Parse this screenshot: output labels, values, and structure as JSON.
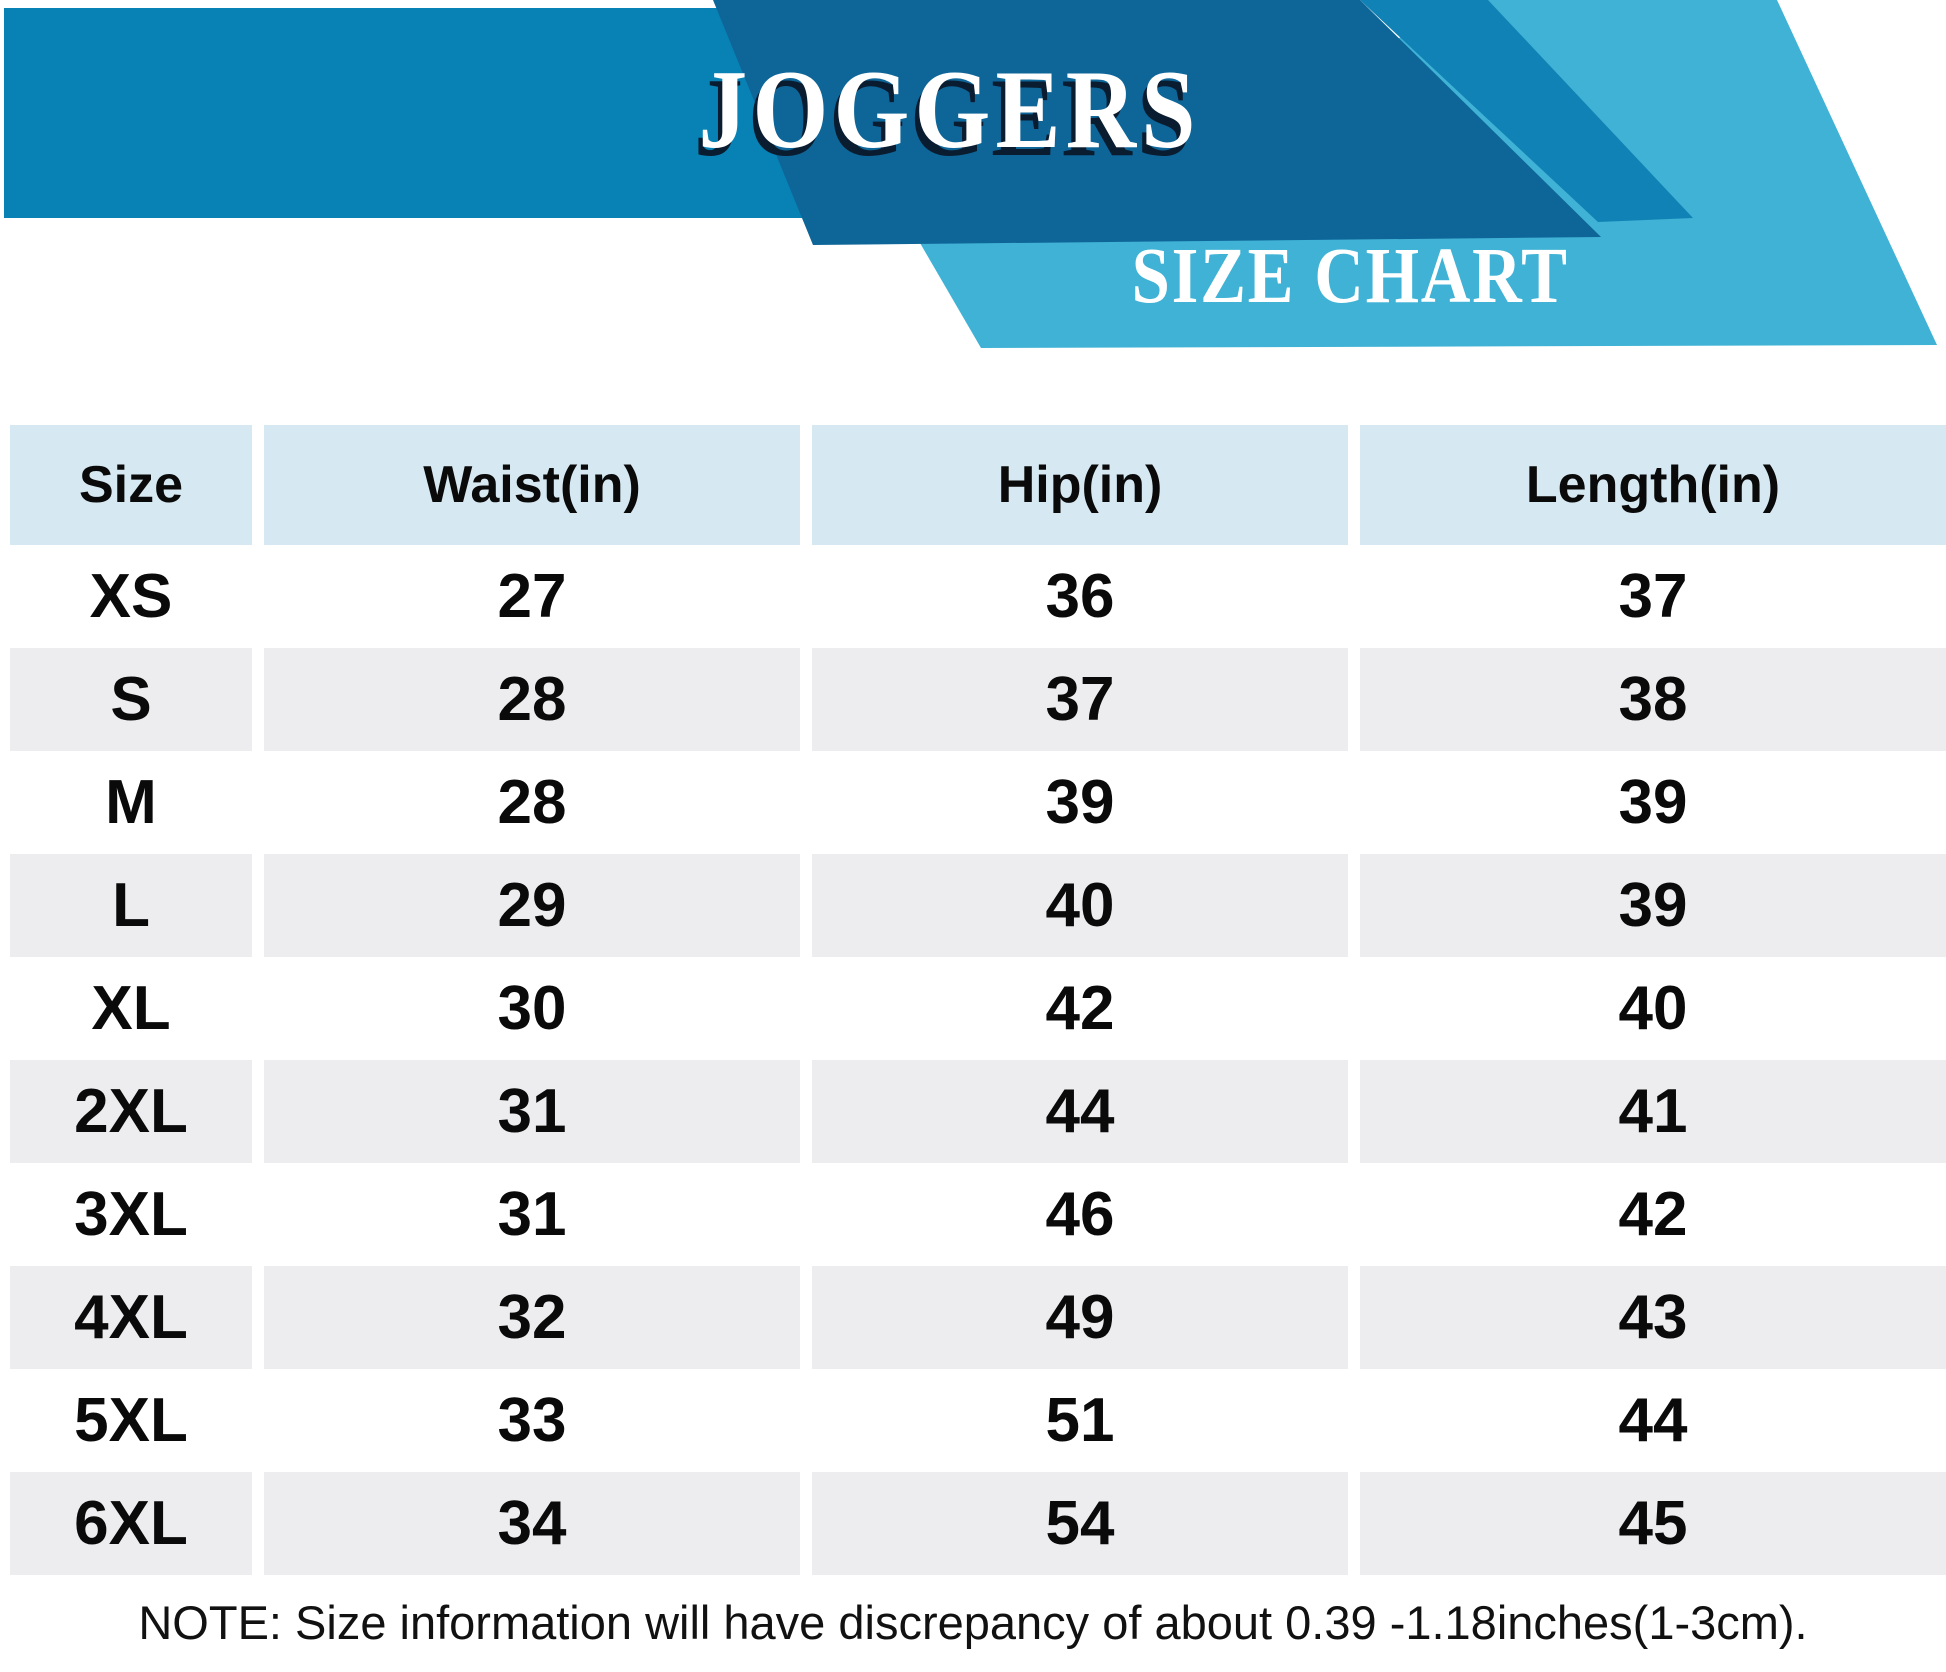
{
  "header": {
    "title": "JOGGERS",
    "subtitle": "SIZE CHART"
  },
  "chart_data": {
    "type": "table",
    "title": "JOGGERS",
    "subtitle": "SIZE CHART",
    "columns": [
      "Size",
      "Waist(in)",
      "Hip(in)",
      "Length(in)"
    ],
    "rows": [
      {
        "size": "XS",
        "waist": "27",
        "hip": "36",
        "length": "37"
      },
      {
        "size": "S",
        "waist": "28",
        "hip": "37",
        "length": "38"
      },
      {
        "size": "M",
        "waist": "28",
        "hip": "39",
        "length": "39"
      },
      {
        "size": "L",
        "waist": "29",
        "hip": "40",
        "length": "39"
      },
      {
        "size": "XL",
        "waist": "30",
        "hip": "42",
        "length": "40"
      },
      {
        "size": "2XL",
        "waist": "31",
        "hip": "44",
        "length": "41"
      },
      {
        "size": "3XL",
        "waist": "31",
        "hip": "46",
        "length": "42"
      },
      {
        "size": "4XL",
        "waist": "32",
        "hip": "49",
        "length": "43"
      },
      {
        "size": "5XL",
        "waist": "33",
        "hip": "51",
        "length": "44"
      },
      {
        "size": "6XL",
        "waist": "34",
        "hip": "54",
        "length": "45"
      }
    ],
    "note": "NOTE: Size information will have discrepancy of about 0.39 -1.18inches(1-3cm).",
    "layout_hints": {
      "striped_rows": "alternate starting with second data row",
      "grid": "off",
      "legend": "none"
    },
    "colors": {
      "banner_medium_blue": "#0881B4",
      "banner_dark_blue": "#0E6598",
      "banner_cyan": "#3FB2D5",
      "header_cell_blue": "#D6E8F2",
      "striped_row_gray": "#EDEDF0",
      "title_shadow_navy": "#0A1C30",
      "text_black": "#0A0A0A"
    }
  }
}
